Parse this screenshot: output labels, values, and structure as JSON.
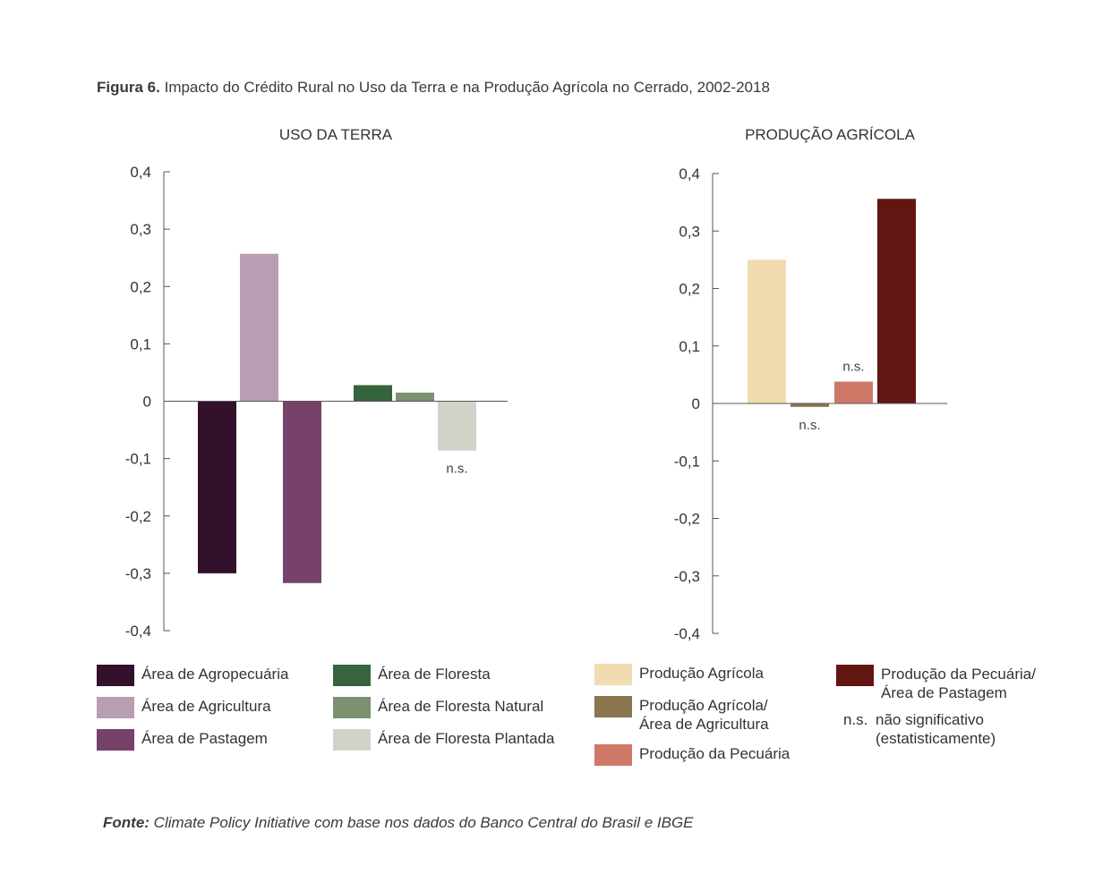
{
  "figure": {
    "label": "Figura 6.",
    "title": "Impacto do Crédito Rural no Uso da Terra e na Produção Agrícola no Cerrado, 2002-2018"
  },
  "source": {
    "label": "Fonte:",
    "text": "Climate Policy Initiative com base nos dados do Banco Central do Brasil e IBGE"
  },
  "ns_note": {
    "key": "n.s.",
    "text": "não significativo\n(estatisticamente)"
  },
  "chart_data": [
    {
      "type": "bar",
      "title": "USO DA TERRA",
      "ylim": [
        -0.4,
        0.4
      ],
      "yticks": [
        0.4,
        0.3,
        0.2,
        0.1,
        0,
        -0.1,
        -0.2,
        -0.3,
        -0.4
      ],
      "ytick_labels": [
        "0,4",
        "0,3",
        "0,2",
        "0,1",
        "0",
        "-0,1",
        "-0,2",
        "-0,3",
        "-0,4"
      ],
      "grid": false,
      "series": [
        {
          "name": "Área de Agropecuária",
          "value": -0.3,
          "color": "#33102c",
          "group": 0,
          "note": ""
        },
        {
          "name": "Área de Agricultura",
          "value": 0.257,
          "color": "#b89eb2",
          "group": 0,
          "note": ""
        },
        {
          "name": "Área de Pastagem",
          "value": -0.317,
          "color": "#76426a",
          "group": 0,
          "note": ""
        },
        {
          "name": "Área de Floresta",
          "value": 0.028,
          "color": "#36643c",
          "group": 1,
          "note": ""
        },
        {
          "name": "Área de Floresta Natural",
          "value": 0.015,
          "color": "#7b9170",
          "group": 1,
          "note": ""
        },
        {
          "name": "Área de Floresta Plantada",
          "value": -0.086,
          "color": "#cfd3c8",
          "group": 1,
          "note": "n.s."
        }
      ]
    },
    {
      "type": "bar",
      "title": "PRODUÇÃO AGRÍCOLA",
      "ylim": [
        -0.4,
        0.4
      ],
      "yticks": [
        0.4,
        0.3,
        0.2,
        0.1,
        0,
        -0.1,
        -0.2,
        -0.3,
        -0.4
      ],
      "ytick_labels": [
        "0,4",
        "0,3",
        "0,2",
        "0,1",
        "0",
        "-0,1",
        "-0,2",
        "-0,3",
        "-0,4"
      ],
      "grid": false,
      "series": [
        {
          "name": "Produção Agrícola",
          "value": 0.25,
          "color": "#f0dcb0",
          "note": ""
        },
        {
          "name": "Produção Agrícola/\nÁrea de Agricultura",
          "value": -0.006,
          "color": "#8b7650",
          "note": "n.s."
        },
        {
          "name": "Produção da Pecuária",
          "value": 0.038,
          "color": "#cf7868",
          "note": "n.s."
        },
        {
          "name": "Produção da Pecuária/\nÁrea de Pastagem",
          "value": 0.356,
          "color": "#621612",
          "note": ""
        }
      ]
    }
  ]
}
